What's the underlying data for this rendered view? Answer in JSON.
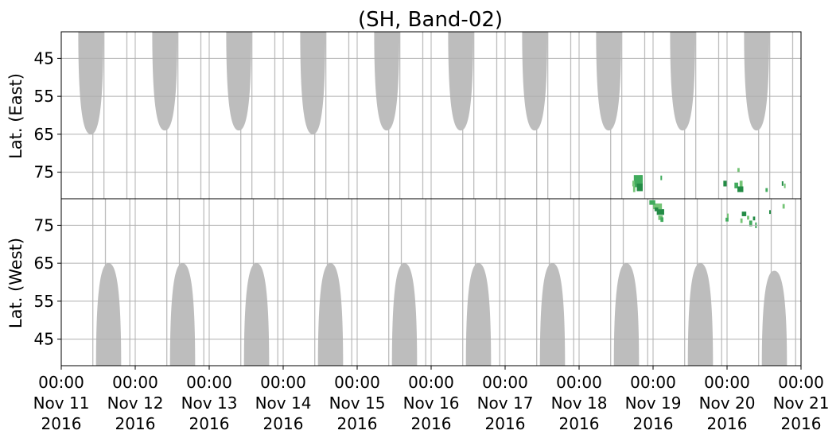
{
  "chart_data": {
    "type": "heatmap",
    "title": "(SH, Band-02)",
    "panels": [
      {
        "name": "east",
        "ylabel": "Lat. (East)",
        "yticks": [
          45,
          55,
          65,
          75
        ],
        "ylim": [
          38,
          82
        ],
        "grey_lobes_lat_min": [
          65,
          64,
          64,
          65,
          64,
          64,
          64,
          64,
          64,
          64
        ]
      },
      {
        "name": "west",
        "ylabel": "Lat. (West)",
        "yticks": [
          75,
          65,
          55,
          45
        ],
        "ylim": [
          38,
          82
        ],
        "grey_lobes_lat_max": [
          65,
          65,
          65,
          65,
          65,
          65,
          65,
          65,
          65,
          63
        ]
      }
    ],
    "x_ticks": [
      {
        "time": "00:00",
        "date": "Nov 11",
        "year": "2016"
      },
      {
        "time": "00:00",
        "date": "Nov 12",
        "year": "2016"
      },
      {
        "time": "00:00",
        "date": "Nov 13",
        "year": "2016"
      },
      {
        "time": "00:00",
        "date": "Nov 14",
        "year": "2016"
      },
      {
        "time": "00:00",
        "date": "Nov 15",
        "year": "2016"
      },
      {
        "time": "00:00",
        "date": "Nov 16",
        "year": "2016"
      },
      {
        "time": "00:00",
        "date": "Nov 17",
        "year": "2016"
      },
      {
        "time": "00:00",
        "date": "Nov 18",
        "year": "2016"
      },
      {
        "time": "00:00",
        "date": "Nov 19",
        "year": "2016"
      },
      {
        "time": "00:00",
        "date": "Nov 20",
        "year": "2016"
      },
      {
        "time": "00:00",
        "date": "Nov 21",
        "year": "2016"
      }
    ],
    "xlim": [
      "2016-11-11 00:00",
      "2016-11-21 00:00"
    ],
    "grid": true,
    "colors": {
      "grey_coverage": "#bdbdbd",
      "detection_light": "#74c476",
      "detection_mid": "#41ab5d",
      "detection_dark": "#238b45"
    },
    "east_detections": [
      {
        "day": 7.73,
        "lat": 79.5,
        "dur": 0.03,
        "h": 1.5
      },
      {
        "day": 7.75,
        "lat": 78.2,
        "dur": 0.05,
        "h": 1.5
      },
      {
        "day": 7.78,
        "lat": 77.6,
        "dur": 0.04,
        "h": 2.0
      },
      {
        "day": 7.82,
        "lat": 76.5,
        "dur": 0.03,
        "h": 1.5
      },
      {
        "day": 7.74,
        "lat": 77.0,
        "dur": 0.12,
        "h": 2.5
      },
      {
        "day": 7.78,
        "lat": 79.0,
        "dur": 0.08,
        "h": 2.0
      },
      {
        "day": 7.72,
        "lat": 78.0,
        "dur": 0.03,
        "h": 1.5
      },
      {
        "day": 8.1,
        "lat": 76.5,
        "dur": 0.02,
        "h": 1.2
      },
      {
        "day": 8.95,
        "lat": 78.0,
        "dur": 0.05,
        "h": 1.5
      },
      {
        "day": 9.14,
        "lat": 74.5,
        "dur": 0.03,
        "h": 1.2
      },
      {
        "day": 9.1,
        "lat": 78.5,
        "dur": 0.05,
        "h": 1.5
      },
      {
        "day": 9.14,
        "lat": 79.5,
        "dur": 0.08,
        "h": 1.5
      },
      {
        "day": 9.17,
        "lat": 78.0,
        "dur": 0.04,
        "h": 1.5
      },
      {
        "day": 9.52,
        "lat": 79.7,
        "dur": 0.03,
        "h": 1.0
      },
      {
        "day": 9.74,
        "lat": 78.0,
        "dur": 0.02,
        "h": 1.2
      },
      {
        "day": 9.77,
        "lat": 78.6,
        "dur": 0.02,
        "h": 1.2
      }
    ],
    "west_detections": [
      {
        "day": 8.0,
        "lat": 80.0,
        "dur": 0.12,
        "h": 1.5
      },
      {
        "day": 7.95,
        "lat": 81.0,
        "dur": 0.08,
        "h": 1.2
      },
      {
        "day": 8.05,
        "lat": 78.5,
        "dur": 0.1,
        "h": 1.5
      },
      {
        "day": 8.07,
        "lat": 77.0,
        "dur": 0.06,
        "h": 1.2
      },
      {
        "day": 8.1,
        "lat": 76.5,
        "dur": 0.04,
        "h": 1.2
      },
      {
        "day": 8.02,
        "lat": 79.2,
        "dur": 0.05,
        "h": 1.0
      },
      {
        "day": 9.0,
        "lat": 77.5,
        "dur": 0.02,
        "h": 1.2
      },
      {
        "day": 8.98,
        "lat": 76.5,
        "dur": 0.04,
        "h": 1.0
      },
      {
        "day": 9.2,
        "lat": 78.0,
        "dur": 0.06,
        "h": 1.2
      },
      {
        "day": 9.27,
        "lat": 77.0,
        "dur": 0.03,
        "h": 1.0
      },
      {
        "day": 9.3,
        "lat": 75.5,
        "dur": 0.04,
        "h": 1.5
      },
      {
        "day": 9.35,
        "lat": 76.8,
        "dur": 0.03,
        "h": 1.0
      },
      {
        "day": 9.18,
        "lat": 76.2,
        "dur": 0.03,
        "h": 1.2
      },
      {
        "day": 9.38,
        "lat": 75.0,
        "dur": 0.02,
        "h": 1.5
      },
      {
        "day": 9.57,
        "lat": 78.5,
        "dur": 0.02,
        "h": 1.0
      },
      {
        "day": 9.75,
        "lat": 80.0,
        "dur": 0.03,
        "h": 1.2
      }
    ]
  }
}
